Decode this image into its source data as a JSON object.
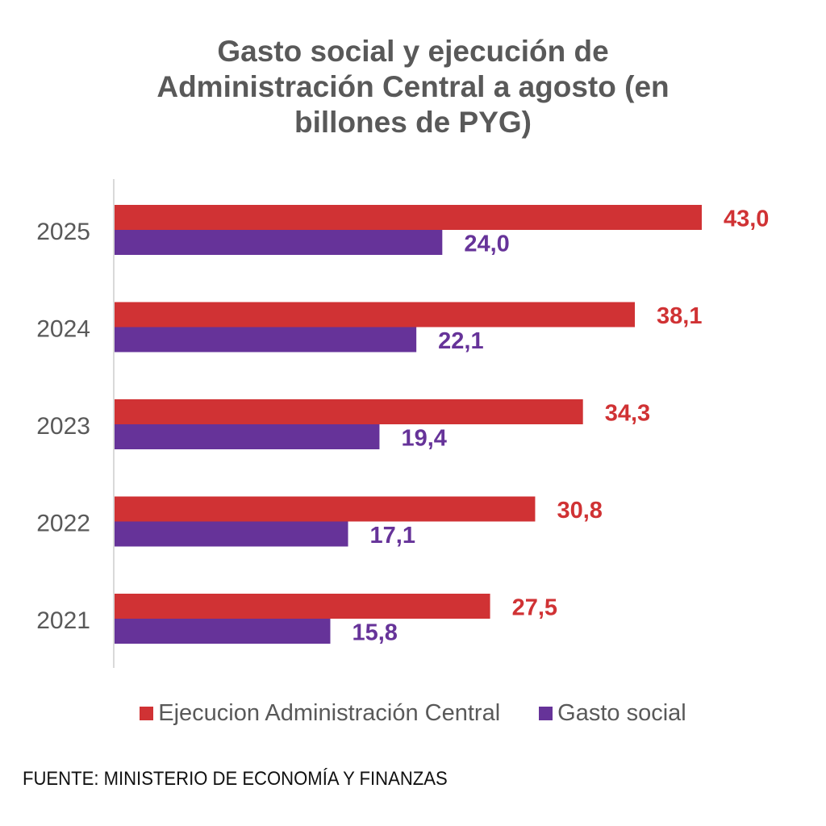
{
  "chart_data": {
    "type": "bar",
    "orientation": "horizontal",
    "title": "Gasto social y ejecución de Administración Central a agosto (en billones de PYG)",
    "title_lines": [
      "Gasto social y ejecución de",
      "Administración Central a agosto (en",
      "billones de PYG)"
    ],
    "categories": [
      "2025",
      "2024",
      "2023",
      "2022",
      "2021"
    ],
    "series": [
      {
        "name": "Ejecucion Administración Central",
        "color": "#d03234",
        "label_color": "#d03234",
        "values": [
          43.0,
          38.1,
          34.3,
          30.8,
          27.5
        ],
        "labels": [
          "43,0",
          "38,1",
          "34,3",
          "30,8",
          "27,5"
        ]
      },
      {
        "name": "Gasto social",
        "color": "#663399",
        "label_color": "#663399",
        "values": [
          24.0,
          22.1,
          19.4,
          17.1,
          15.8
        ],
        "labels": [
          "24,0",
          "22,1",
          "19,4",
          "17,1",
          "15,8"
        ]
      }
    ],
    "xlabel": "",
    "ylabel": "",
    "xlim": [
      0,
      50
    ],
    "grid": false,
    "x_axis_visible": false,
    "legend_position": "bottom"
  },
  "legend": {
    "items": [
      {
        "label": "Ejecucion Administración Central",
        "color": "#d03234"
      },
      {
        "label": "Gasto social",
        "color": "#663399"
      }
    ]
  },
  "source": "FUENTE: MINISTERIO DE ECONOMÍA Y FINANZAS"
}
